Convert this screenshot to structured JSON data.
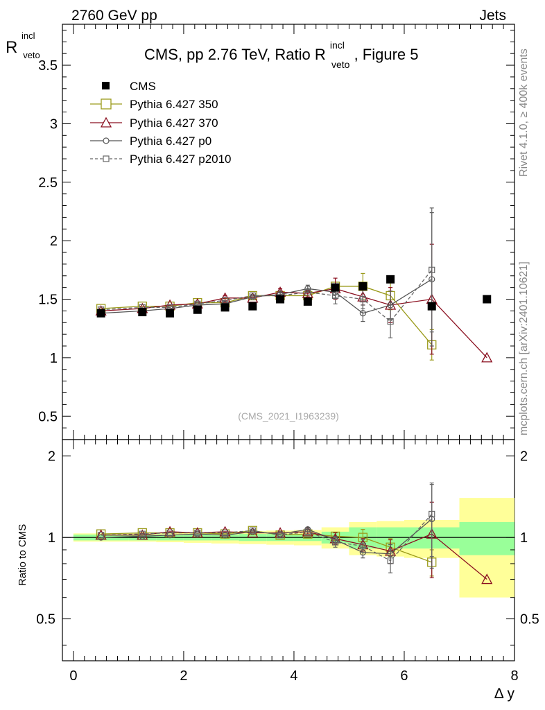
{
  "header": {
    "left_label": "2760 GeV pp",
    "right_label": "Jets"
  },
  "side": {
    "rivet": "Rivet 4.1.0, ≥ 400k events",
    "mcplots": "mcplots.cern.ch [arXiv:2401.10621]"
  },
  "chart_data": [
    {
      "type": "scatter",
      "title_main": "CMS, pp 2.76 TeV, Ratio R",
      "title_sup": "incl",
      "title_sub": "veto",
      "title_end": ", Figure 5",
      "ylabel_main": "R",
      "ylabel_sup": "incl",
      "ylabel_sub": "veto",
      "xlim": [
        -0.2,
        8.0
      ],
      "ylim": [
        0.3,
        3.85
      ],
      "yticks": [
        "0.5",
        "1",
        "1.5",
        "2",
        "2.5",
        "3",
        "3.5"
      ],
      "analysis_tag": "(CMS_2021_I1963239)",
      "legend_position": "top-left",
      "series": [
        {
          "name": "CMS",
          "style": "data",
          "color": "#000000",
          "x": [
            0.5,
            1.25,
            1.75,
            2.25,
            2.75,
            3.25,
            3.75,
            4.25,
            4.75,
            5.25,
            5.75,
            6.5,
            7.5
          ],
          "y": [
            1.38,
            1.39,
            1.38,
            1.41,
            1.43,
            1.44,
            1.5,
            1.48,
            1.6,
            1.61,
            1.67,
            1.44,
            1.5
          ]
        },
        {
          "name": "Pythia 6.427 350",
          "style": "open-square",
          "color": "#9a9a1a",
          "x": [
            0.5,
            1.25,
            1.75,
            2.25,
            2.75,
            3.25,
            3.75,
            4.25,
            4.75,
            5.25,
            5.75,
            6.5
          ],
          "y": [
            1.42,
            1.44,
            1.44,
            1.47,
            1.47,
            1.53,
            1.53,
            1.53,
            1.61,
            1.61,
            1.53,
            1.11
          ],
          "err": [
            0,
            0,
            0,
            0,
            0,
            0,
            0,
            0,
            0,
            0.11,
            0.12,
            0.13
          ]
        },
        {
          "name": "Pythia 6.427 370",
          "style": "open-triangle",
          "color": "#8b1020",
          "x": [
            0.5,
            1.25,
            1.75,
            2.25,
            2.75,
            3.25,
            3.75,
            4.25,
            4.75,
            5.25,
            5.75,
            6.5,
            7.5
          ],
          "y": [
            1.4,
            1.42,
            1.45,
            1.46,
            1.51,
            1.51,
            1.56,
            1.55,
            1.59,
            1.52,
            1.45,
            1.5,
            1.0
          ],
          "err": [
            0,
            0,
            0,
            0,
            0.02,
            0,
            0.03,
            0.03,
            0.09,
            0.07,
            0.15,
            0.47,
            0
          ]
        },
        {
          "name": "Pythia 6.427 p0",
          "style": "open-circle",
          "color": "#555555",
          "x": [
            0.5,
            1.25,
            1.75,
            2.25,
            2.75,
            3.25,
            3.75,
            4.25,
            4.75,
            5.25,
            5.75,
            6.5
          ],
          "y": [
            1.38,
            1.4,
            1.42,
            1.45,
            1.46,
            1.52,
            1.54,
            1.59,
            1.56,
            1.38,
            1.45,
            1.67
          ],
          "err": [
            0,
            0,
            0,
            0,
            0,
            0,
            0.03,
            0.03,
            0.05,
            0.07,
            0.12,
            0.57
          ]
        },
        {
          "name": "Pythia 6.427 p2010",
          "style": "open-square-dashed",
          "color": "#666666",
          "x": [
            0.5,
            1.25,
            1.75,
            2.25,
            2.75,
            3.25,
            3.75,
            4.25,
            4.75,
            5.25,
            5.75,
            6.5
          ],
          "y": [
            1.41,
            1.43,
            1.43,
            1.46,
            1.49,
            1.53,
            1.53,
            1.56,
            1.53,
            1.5,
            1.31,
            1.75
          ],
          "err": [
            0,
            0,
            0,
            0,
            0,
            0,
            0,
            0,
            0.07,
            0.08,
            0.14,
            0.53
          ]
        }
      ]
    },
    {
      "type": "scatter",
      "ylabel": "Ratio to CMS",
      "xlabel": "Δ y",
      "xlim": [
        -0.2,
        8.0
      ],
      "ylim": [
        0.35,
        2.3
      ],
      "xticks": [
        "0",
        "2",
        "4",
        "6",
        "8"
      ],
      "yticks": [
        "0.5",
        "1",
        "2"
      ],
      "bands": {
        "edges": [
          0,
          1,
          1.5,
          2,
          2.5,
          3,
          3.5,
          4,
          4.5,
          5,
          5.5,
          6,
          7,
          8
        ],
        "inner": [
          0.025,
          0.025,
          0.025,
          0.025,
          0.025,
          0.03,
          0.03,
          0.03,
          0.05,
          0.09,
          0.09,
          0.09,
          0.14
        ],
        "outer": [
          0.035,
          0.035,
          0.04,
          0.045,
          0.05,
          0.055,
          0.06,
          0.065,
          0.09,
          0.14,
          0.15,
          0.16,
          0.4
        ]
      },
      "series": [
        {
          "name": "Pythia 6.427 350",
          "x": [
            0.5,
            1.25,
            1.75,
            2.25,
            2.75,
            3.25,
            3.75,
            4.25,
            4.75,
            5.25,
            5.75,
            6.5
          ],
          "y": [
            1.03,
            1.04,
            1.04,
            1.04,
            1.03,
            1.06,
            1.02,
            1.03,
            1.01,
            1.0,
            0.92,
            0.81
          ],
          "err": [
            0,
            0,
            0,
            0,
            0,
            0,
            0,
            0,
            0,
            0.07,
            0.07,
            0.09
          ]
        },
        {
          "name": "Pythia 6.427 370",
          "x": [
            0.5,
            1.25,
            1.75,
            2.25,
            2.75,
            3.25,
            3.75,
            4.25,
            4.75,
            5.25,
            5.75,
            6.5,
            7.5
          ],
          "y": [
            1.02,
            1.02,
            1.05,
            1.04,
            1.05,
            1.04,
            1.04,
            1.05,
            0.99,
            0.94,
            0.89,
            1.03,
            0.7
          ],
          "err": [
            0,
            0,
            0,
            0,
            0,
            0,
            0,
            0.02,
            0.05,
            0.05,
            0.09,
            0.32,
            0
          ]
        },
        {
          "name": "Pythia 6.427 p0",
          "x": [
            0.5,
            1.25,
            1.75,
            2.25,
            2.75,
            3.25,
            3.75,
            4.25,
            4.75,
            5.25,
            5.75,
            6.5
          ],
          "y": [
            1.0,
            1.01,
            1.02,
            1.03,
            1.02,
            1.05,
            1.03,
            1.07,
            0.98,
            0.88,
            0.87,
            1.17
          ],
          "err": [
            0,
            0,
            0,
            0,
            0,
            0,
            0,
            0.02,
            0.03,
            0.04,
            0.07,
            0.4
          ]
        },
        {
          "name": "Pythia 6.427 p2010",
          "x": [
            0.5,
            1.25,
            1.75,
            2.25,
            2.75,
            3.25,
            3.75,
            4.25,
            4.75,
            5.25,
            5.75,
            6.5
          ],
          "y": [
            1.02,
            1.03,
            1.04,
            1.04,
            1.04,
            1.06,
            1.02,
            1.05,
            0.96,
            0.93,
            0.82,
            1.22
          ],
          "err": [
            0,
            0,
            0,
            0,
            0,
            0,
            0,
            0,
            0.04,
            0.05,
            0.08,
            0.37
          ]
        }
      ]
    }
  ]
}
